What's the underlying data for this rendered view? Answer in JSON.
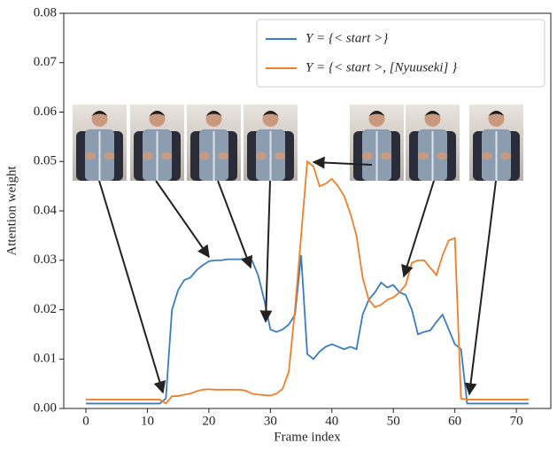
{
  "chart_data": {
    "type": "line",
    "xlabel": "Frame index",
    "ylabel": "Attention weight",
    "x": [
      0,
      1,
      2,
      3,
      4,
      5,
      6,
      7,
      8,
      9,
      10,
      11,
      12,
      13,
      14,
      15,
      16,
      17,
      18,
      19,
      20,
      21,
      22,
      23,
      24,
      25,
      26,
      27,
      28,
      29,
      30,
      31,
      32,
      33,
      34,
      35,
      36,
      37,
      38,
      39,
      40,
      41,
      42,
      43,
      44,
      45,
      46,
      47,
      48,
      49,
      50,
      51,
      52,
      53,
      54,
      55,
      56,
      57,
      58,
      59,
      60,
      61,
      62,
      63,
      64,
      65,
      66,
      67,
      68,
      69,
      70,
      71,
      72
    ],
    "series": [
      {
        "name": "Y = {< start >}",
        "color": "#3a7cc0",
        "values": [
          0.001,
          0.001,
          0.001,
          0.001,
          0.001,
          0.001,
          0.001,
          0.001,
          0.001,
          0.001,
          0.001,
          0.001,
          0.001,
          0.002,
          0.02,
          0.024,
          0.026,
          0.0265,
          0.028,
          0.029,
          0.0298,
          0.03,
          0.03,
          0.0302,
          0.0302,
          0.0302,
          0.0303,
          0.03,
          0.027,
          0.022,
          0.016,
          0.0155,
          0.016,
          0.017,
          0.019,
          0.031,
          0.011,
          0.01,
          0.0115,
          0.0125,
          0.013,
          0.0125,
          0.012,
          0.0125,
          0.012,
          0.019,
          0.022,
          0.0235,
          0.0255,
          0.0245,
          0.025,
          0.0235,
          0.023,
          0.02,
          0.015,
          0.0155,
          0.0158,
          0.0175,
          0.019,
          0.016,
          0.013,
          0.012,
          0.001,
          0.001,
          0.001,
          0.001,
          0.001,
          0.001,
          0.001,
          0.001,
          0.001,
          0.001,
          0.001
        ]
      },
      {
        "name": "Y = {< start >, [Nyuuseki] }",
        "color": "#f07f2a",
        "values": [
          0.0018,
          0.0018,
          0.0018,
          0.0018,
          0.0018,
          0.0018,
          0.0018,
          0.0018,
          0.0018,
          0.0018,
          0.0018,
          0.0018,
          0.0018,
          0.001,
          0.0025,
          0.0025,
          0.0028,
          0.003,
          0.0035,
          0.0038,
          0.0039,
          0.0038,
          0.0038,
          0.0038,
          0.0038,
          0.0038,
          0.0036,
          0.003,
          0.0028,
          0.0027,
          0.0026,
          0.003,
          0.004,
          0.0075,
          0.02,
          0.035,
          0.05,
          0.049,
          0.045,
          0.0455,
          0.0465,
          0.045,
          0.043,
          0.0395,
          0.035,
          0.0265,
          0.022,
          0.0205,
          0.021,
          0.022,
          0.0225,
          0.0235,
          0.025,
          0.0295,
          0.03,
          0.03,
          0.0285,
          0.027,
          0.031,
          0.034,
          0.0345,
          0.002,
          0.0018,
          0.0018,
          0.0018,
          0.0018,
          0.0018,
          0.0018,
          0.0018,
          0.0018,
          0.0018,
          0.0018,
          0.0018
        ]
      }
    ],
    "xlim": [
      -3.6,
      75.6
    ],
    "xticks": [
      0,
      10,
      20,
      30,
      40,
      50,
      60,
      70
    ],
    "ylim": [
      0,
      0.08
    ],
    "yticks": [
      {
        "value": 0,
        "label": "0.00"
      },
      {
        "value": 0.01,
        "label": "0.01"
      },
      {
        "value": 0.02,
        "label": "0.02"
      },
      {
        "value": 0.03,
        "label": "0.03"
      },
      {
        "value": 0.04,
        "label": "0.04"
      },
      {
        "value": 0.05,
        "label": "0.05"
      },
      {
        "value": 0.06,
        "label": "0.06"
      },
      {
        "value": 0.07,
        "label": "0.07"
      },
      {
        "value": 0.08,
        "label": "0.08"
      }
    ],
    "legend": "upper right",
    "grid": false
  }
}
